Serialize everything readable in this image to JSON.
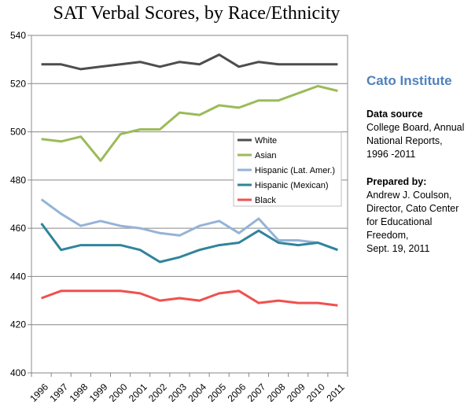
{
  "chart_data": {
    "type": "line",
    "title": "SAT Verbal Scores, by Race/Ethnicity",
    "x": [
      "1996",
      "1997",
      "1998",
      "1999",
      "2000",
      "2001",
      "2002",
      "2003",
      "2004",
      "2005",
      "2006",
      "2007",
      "2008",
      "2009",
      "2010",
      "2011"
    ],
    "ylim": [
      400,
      540
    ],
    "yticks": [
      400,
      420,
      440,
      460,
      480,
      500,
      520,
      540
    ],
    "grid": true,
    "legend_position": "center-right",
    "series": [
      {
        "name": "White",
        "color": "#4d4d4d",
        "values": [
          528,
          528,
          526,
          527,
          528,
          529,
          527,
          529,
          528,
          532,
          527,
          529,
          528,
          528,
          528,
          528
        ]
      },
      {
        "name": "Asian",
        "color": "#9bbb59",
        "values": [
          497,
          496,
          498,
          488,
          499,
          501,
          501,
          508,
          507,
          511,
          510,
          513,
          513,
          516,
          519,
          517
        ]
      },
      {
        "name": "Hispanic (Lat. Amer.)",
        "color": "#95b3d7",
        "values": [
          472,
          466,
          461,
          463,
          461,
          460,
          458,
          457,
          461,
          463,
          458,
          464,
          455,
          455,
          454,
          451
        ]
      },
      {
        "name": "Hispanic (Mexican)",
        "color": "#31849b",
        "values": [
          462,
          451,
          453,
          453,
          453,
          451,
          446,
          448,
          451,
          453,
          454,
          459,
          454,
          453,
          454,
          451
        ]
      },
      {
        "name": "Black",
        "color": "#f0504f",
        "values": [
          431,
          434,
          434,
          434,
          434,
          433,
          430,
          431,
          430,
          433,
          434,
          429,
          430,
          429,
          429,
          428
        ]
      }
    ]
  },
  "sidebar": {
    "org": "Cato Institute",
    "source_title": "Data source",
    "source_lines": [
      "College Board, Annual",
      "National Reports,",
      "1996  -2011"
    ],
    "prepared_title": "Prepared by:",
    "prepared_lines": [
      "Andrew J. Coulson,",
      "Director, Cato Center",
      "for Educational",
      "Freedom,",
      "Sept. 19,  2011"
    ]
  }
}
